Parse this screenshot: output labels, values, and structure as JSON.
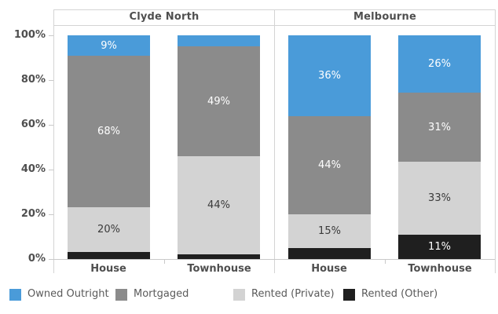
{
  "chart_data": {
    "type": "bar",
    "stacked": true,
    "orientation": "vertical",
    "units": "percent",
    "ylim": [
      0,
      100
    ],
    "grid": "off",
    "panels": {
      "left": {
        "title": "Clyde North"
      },
      "right": {
        "title": "Melbourne"
      }
    },
    "categories": [
      "House",
      "Townhouse",
      "House",
      "Townhouse"
    ],
    "category_panel": [
      0,
      0,
      1,
      1
    ],
    "y_axis": {
      "tick_values": [
        0,
        20,
        40,
        60,
        80,
        100
      ],
      "tick_labels": [
        "0%",
        "20%",
        "40%",
        "60%",
        "80%",
        "100%"
      ]
    },
    "series": [
      {
        "name": "Owned Outright",
        "color": "#4a9bd9",
        "label_color": "#ffffff",
        "values": [
          9,
          5,
          36,
          26
        ],
        "labels": [
          "9%",
          "",
          "36%",
          "26%"
        ]
      },
      {
        "name": "Mortgaged",
        "color": "#8b8b8b",
        "label_color": "#ffffff",
        "values": [
          68,
          49,
          44,
          31
        ],
        "labels": [
          "68%",
          "49%",
          "44%",
          "31%"
        ]
      },
      {
        "name": "Rented (Private)",
        "color": "#d3d3d3",
        "label_color": "#3a3a3a",
        "values": [
          20,
          44,
          15,
          33
        ],
        "labels": [
          "20%",
          "44%",
          "15%",
          "33%"
        ]
      },
      {
        "name": "Rented (Other)",
        "color": "#1f1f1f",
        "label_color": "#ffffff",
        "values": [
          3,
          2,
          5,
          11
        ],
        "labels": [
          "",
          "",
          "",
          "11%"
        ]
      }
    ],
    "legend": {
      "position": "bottom",
      "entries": [
        "Owned Outright",
        "Mortgaged",
        "Rented (Private)",
        "Rented (Other)"
      ]
    }
  }
}
